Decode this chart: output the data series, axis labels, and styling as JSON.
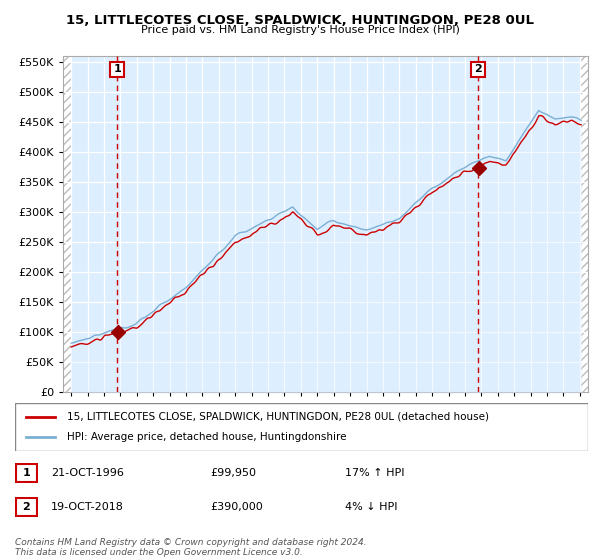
{
  "title1": "15, LITTLECOTES CLOSE, SPALDWICK, HUNTINGDON, PE28 0UL",
  "title2": "Price paid vs. HM Land Registry's House Price Index (HPI)",
  "sale1_date": "21-OCT-1996",
  "sale1_price": 99950,
  "sale1_hpi": "17% ↑ HPI",
  "sale2_date": "19-OCT-2018",
  "sale2_price": 390000,
  "sale2_hpi": "4% ↓ HPI",
  "legend1": "15, LITTLECOTES CLOSE, SPALDWICK, HUNTINGDON, PE28 0UL (detached house)",
  "legend2": "HPI: Average price, detached house, Huntingdonshire",
  "footnote": "Contains HM Land Registry data © Crown copyright and database right 2024.\nThis data is licensed under the Open Government Licence v3.0.",
  "line_color_red": "#cc0000",
  "line_color_blue": "#7bafd4",
  "fill_color_blue": "#ddeeff",
  "marker_color": "#990000",
  "dashed_line_color": "#cc0000",
  "hatch_color": "#cccccc",
  "ylim_max": 560000,
  "ylim_min": 0,
  "sale1_year": 1996.8,
  "sale2_year": 2018.8,
  "xlim_min": 1993.5,
  "xlim_max": 2025.5
}
